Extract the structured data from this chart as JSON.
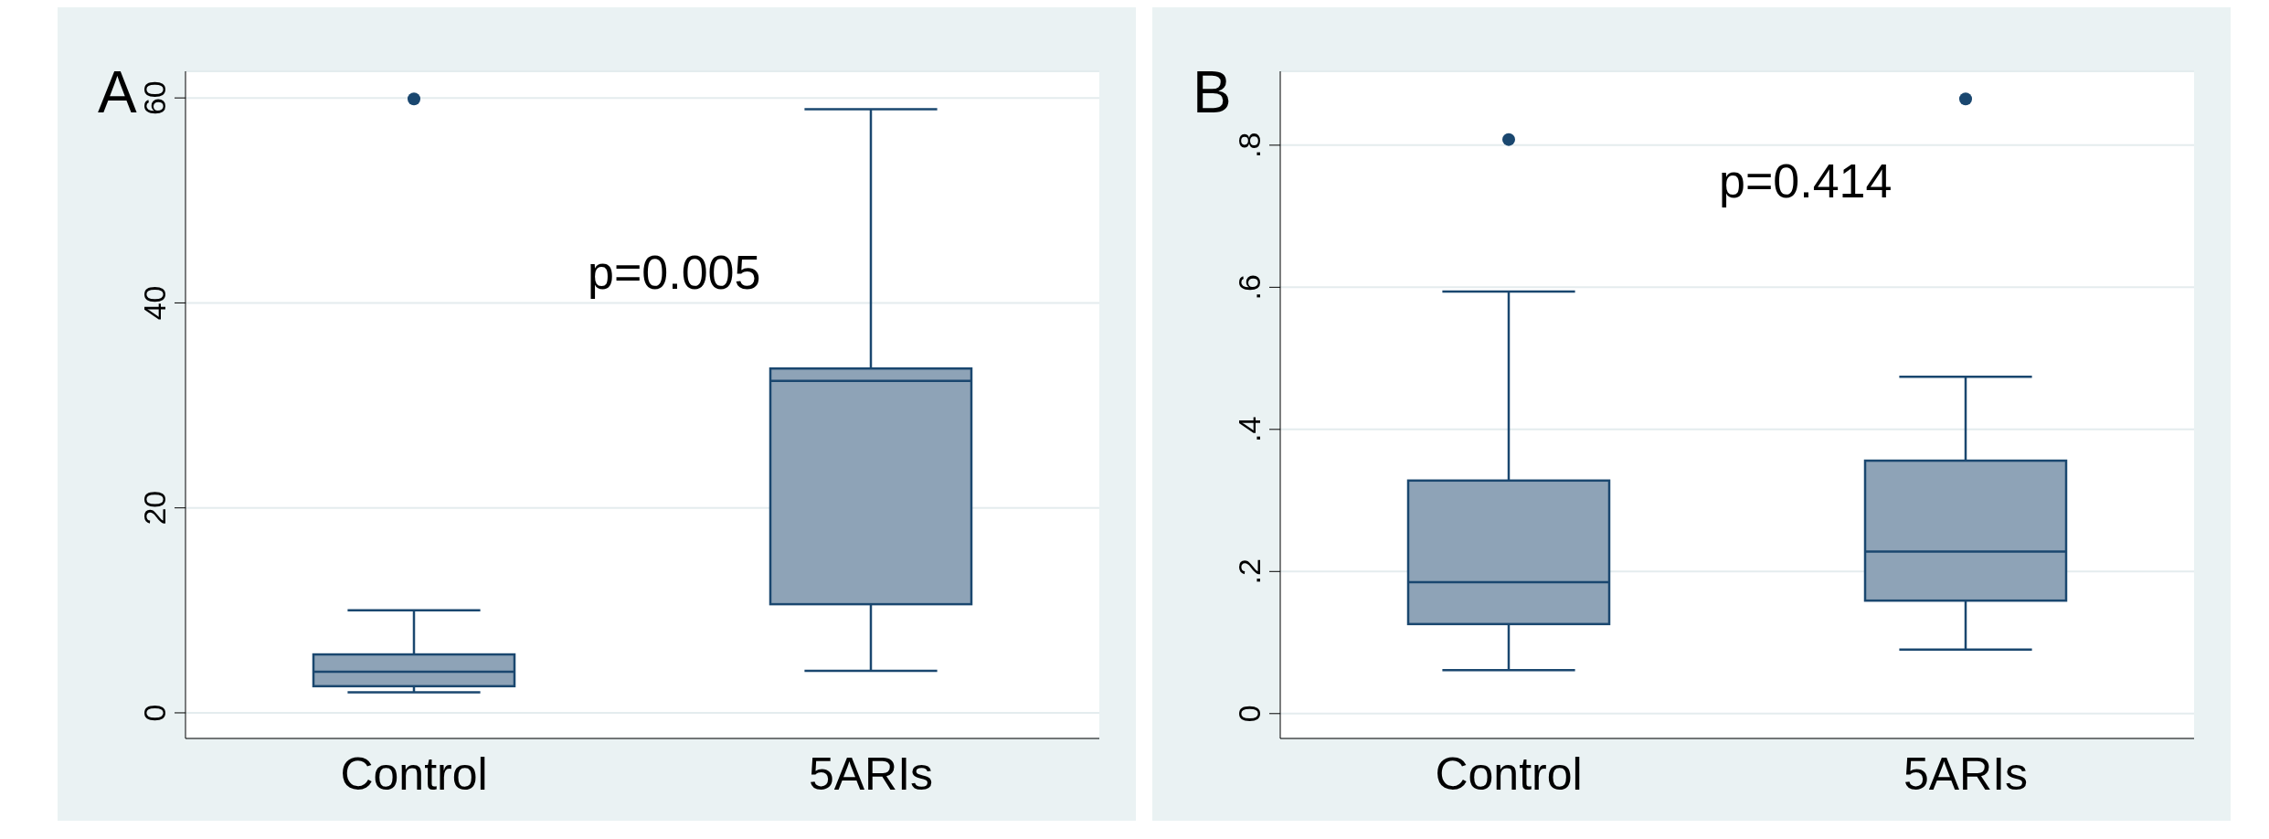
{
  "chart_data": [
    {
      "type": "box",
      "title": "A",
      "categories": [
        "Control",
        "5ARIs"
      ],
      "color": "#8ea3b7",
      "boxes": [
        {
          "low": 2.0,
          "q1": 2.6,
          "median": 4.0,
          "q3": 5.7,
          "high": 10.0,
          "outliers": [
            59.9
          ]
        },
        {
          "low": 4.1,
          "q1": 10.6,
          "median": 32.4,
          "q3": 33.6,
          "high": 58.9
        }
      ],
      "ylim": [
        -2.5,
        62.6
      ],
      "yticks": [
        0,
        20,
        40,
        60
      ],
      "grid": "y",
      "legend": false,
      "annotations": [
        "p=0.005"
      ]
    },
    {
      "type": "box",
      "title": "B",
      "categories": [
        "Control",
        "5ARIs"
      ],
      "color": "#8ea3b7",
      "boxes": [
        {
          "low": 0.061,
          "q1": 0.126,
          "median": 0.185,
          "q3": 0.328,
          "high": 0.594,
          "outliers": [
            0.808
          ]
        },
        {
          "low": 0.09,
          "q1": 0.159,
          "median": 0.228,
          "q3": 0.356,
          "high": 0.474,
          "outliers": [
            0.865
          ]
        }
      ],
      "ylim": [
        -0.035,
        0.904
      ],
      "yticks": [
        0,
        {
          "value": 0.2,
          "label": ".2"
        },
        {
          "value": 0.4,
          "label": ".4"
        },
        {
          "value": 0.6,
          "label": ".6"
        },
        {
          "value": 0.8,
          "label": ".8"
        }
      ],
      "grid": "y",
      "legend": false,
      "annotations": [
        "p=0.414"
      ]
    }
  ]
}
